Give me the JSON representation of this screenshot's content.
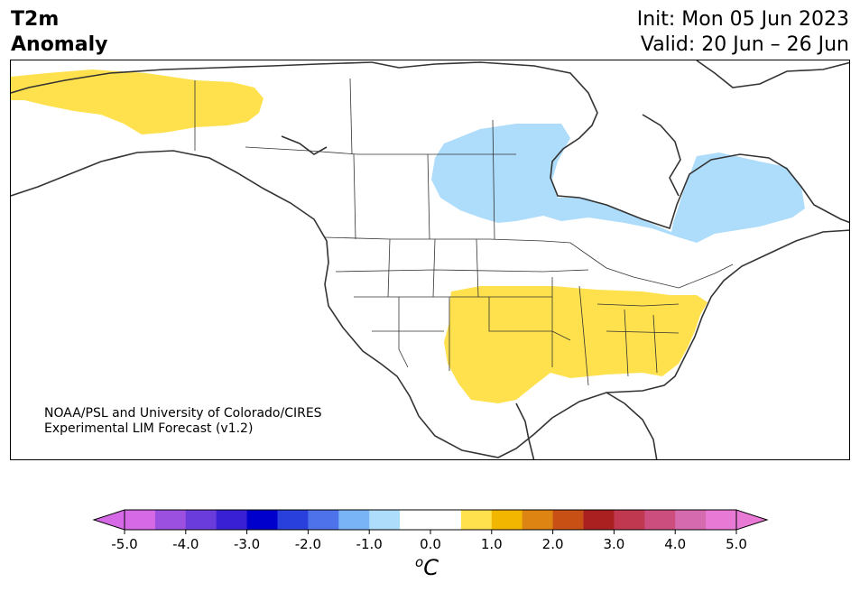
{
  "title": {
    "variable": "T2m",
    "subtitle": "Anomaly",
    "init": "Init: Mon 05 Jun 2023",
    "valid": "Valid: 20 Jun – 26 Jun"
  },
  "credit": {
    "line1": "NOAA/PSL and University of Colorado/CIRES",
    "line2": "Experimental LIM Forecast (v1.2)"
  },
  "map": {
    "region": "North America",
    "anomaly_regions": [
      {
        "name": "Alaska / Yukon",
        "category": "0.5 to 1.0",
        "color": "#ffe14d"
      },
      {
        "name": "Central Canada / Hudson Bay",
        "category": "-1.0 to -0.5",
        "color": "#aedcfb"
      },
      {
        "name": "South-Central and Southeastern US",
        "category": "0.5 to 1.0",
        "color": "#ffe14d"
      }
    ]
  },
  "colorbar": {
    "unit_label": "C",
    "unit_sup": "o",
    "ticks": [
      "-5.0",
      "-4.0",
      "-3.0",
      "-2.0",
      "-1.0",
      "0.0",
      "1.0",
      "2.0",
      "3.0",
      "4.0",
      "5.0"
    ],
    "colors": [
      "#d66ae6",
      "#9b50e0",
      "#6a3cdc",
      "#3a20d4",
      "#0000cc",
      "#2a40dc",
      "#4d72ea",
      "#78b4f6",
      "#aedcfb",
      "#ffffff",
      "#ffffff",
      "#ffe14d",
      "#f2b600",
      "#de8412",
      "#c85014",
      "#aa2020",
      "#c03850",
      "#cc4e7e",
      "#d66aae",
      "#e87ad6"
    ],
    "extend_low_color": "#d66ae6",
    "extend_high_color": "#e87ad6"
  }
}
